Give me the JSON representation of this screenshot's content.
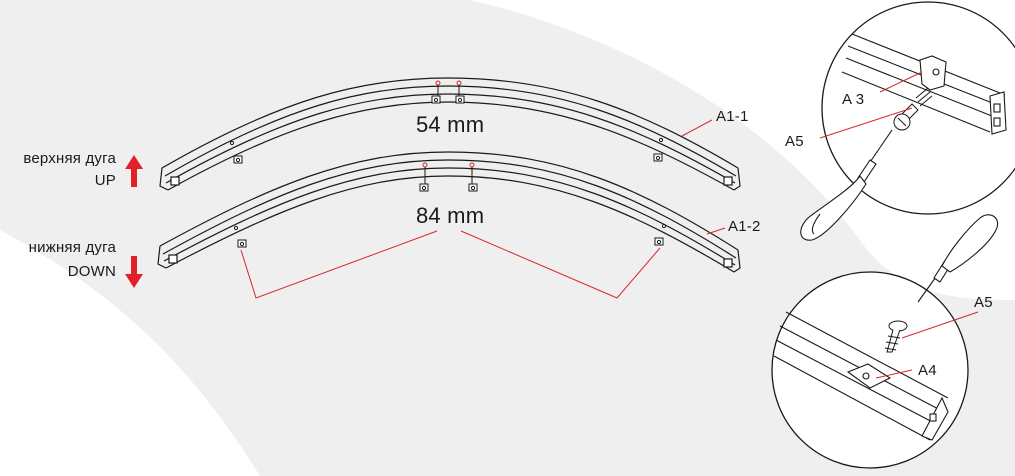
{
  "labels": {
    "upper_arc_ru": "верхняя дуга",
    "upper_arc_en": "UP",
    "lower_arc_ru": "нижняя  дуга",
    "lower_arc_en": "DOWN",
    "dim_upper": "54 mm",
    "dim_lower": "84 mm",
    "part_upper": "A1-1",
    "part_lower": "A1-2",
    "detail_top_a3": "A 3",
    "detail_top_a5": "A5",
    "detail_bottom_a5": "A5",
    "detail_bottom_a4": "A4"
  },
  "colors": {
    "background_shape": "#efefef",
    "line": "#1a1a1a",
    "leader": "#d9262b",
    "arrow": "#e32028",
    "profile_fill": "#ffffff"
  },
  "icons": {
    "up_arrow": "arrow-up-icon",
    "down_arrow": "arrow-down-icon",
    "screwdriver": "screwdriver-icon",
    "screw": "screw-icon",
    "bracket": "mounting-bracket-icon"
  }
}
